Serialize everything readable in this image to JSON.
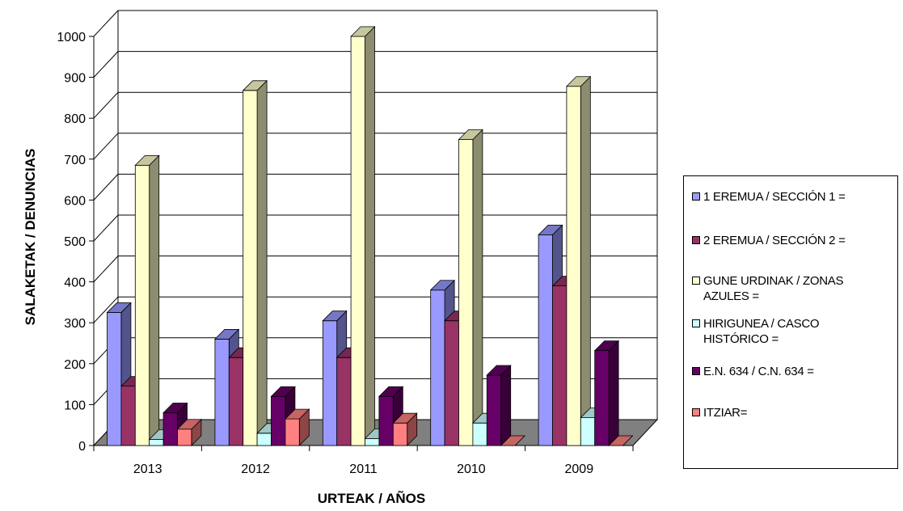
{
  "chart_data": {
    "type": "bar",
    "title": "",
    "xlabel": "URTEAK / AÑOS",
    "ylabel": "SALAKETAK / DENUNCIAS",
    "ylim": [
      0,
      1000
    ],
    "yticks": [
      0,
      100,
      200,
      300,
      400,
      500,
      600,
      700,
      800,
      900,
      1000
    ],
    "categories": [
      "2013",
      "2012",
      "2011",
      "2010",
      "2009"
    ],
    "grid": true,
    "legend_position": "right",
    "series": [
      {
        "name": "1 EREMUA / SECCIÓN 1 =",
        "color": "#9999ff",
        "values": [
          325,
          260,
          305,
          380,
          515
        ]
      },
      {
        "name": "2 EREMUA / SECCIÓN 2 =",
        "color": "#993366",
        "values": [
          145,
          215,
          215,
          305,
          390
        ]
      },
      {
        "name": "GUNE URDINAK / ZONAS AZULES =",
        "color": "#ffffcc",
        "values": [
          685,
          868,
          1000,
          748,
          878
        ]
      },
      {
        "name": "HIRIGUNEA / CASCO HISTÓRICO =",
        "color": "#ccffff",
        "values": [
          15,
          30,
          17,
          55,
          68
        ]
      },
      {
        "name": "E.N. 634 / C.N. 634 =",
        "color": "#660066",
        "values": [
          80,
          120,
          120,
          172,
          232
        ]
      },
      {
        "name": "ITZIAR=",
        "color": "#ff8080",
        "values": [
          40,
          65,
          55,
          0,
          0
        ]
      }
    ]
  }
}
